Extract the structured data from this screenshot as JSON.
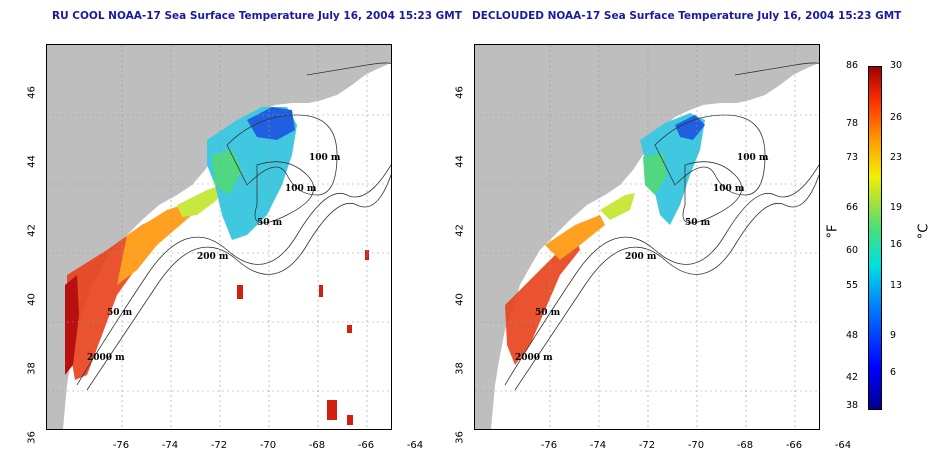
{
  "titles": {
    "left": "RU COOL NOAA-17 Sea Surface Temperature July 16, 2004 15:23 GMT",
    "right": "DECLOUDED NOAA-17 Sea Surface Temperature July 16, 2004 15:23 GMT"
  },
  "axes": {
    "lat_ticks": [
      "46",
      "44",
      "42",
      "40",
      "38",
      "36"
    ],
    "lon_ticks": [
      "-76",
      "-74",
      "-72",
      "-70",
      "-68",
      "-66",
      "-64"
    ]
  },
  "contour_labels": [
    "100 m",
    "100 m",
    "50 m",
    "200 m",
    "50 m",
    "2000 m"
  ],
  "colorbar": {
    "fahrenheit": [
      "86",
      "78",
      "73",
      "66",
      "60",
      "55",
      "48",
      "42",
      "38"
    ],
    "celsius": [
      "30",
      "26",
      "23",
      "19",
      "16",
      "13",
      "9",
      "6"
    ],
    "unit_f": "°F",
    "unit_c": "°C"
  },
  "colors": {
    "land": "#bebebe",
    "title": "#1a1aa0",
    "ocean_no_data": "#ffffff"
  }
}
